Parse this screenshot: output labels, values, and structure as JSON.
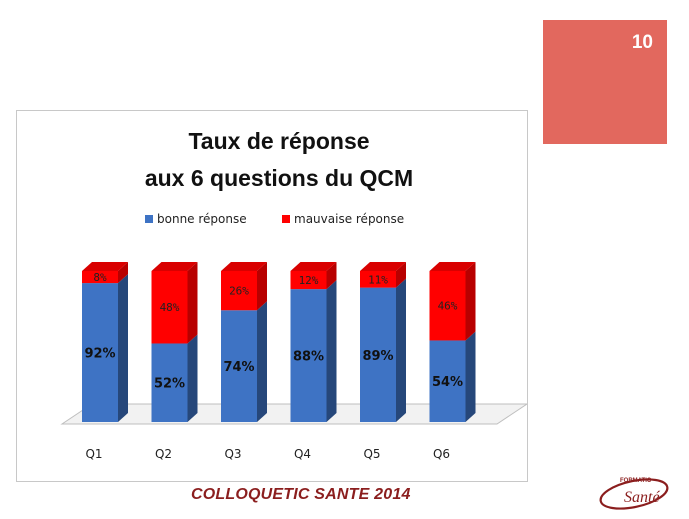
{
  "slide": {
    "page_number": "10",
    "footer": "COLLOQUETIC SANTE 2014",
    "badge_color": "#E2685E"
  },
  "logo": {
    "top_text": "FORMATIC",
    "main_text": "Santé",
    "color": "#8B1E1E"
  },
  "chart_data": {
    "type": "bar",
    "stacked": true,
    "title_lines": [
      "Taux de réponse",
      "aux 6 questions du QCM"
    ],
    "categories": [
      "Q1",
      "Q2",
      "Q3",
      "Q4",
      "Q5",
      "Q6"
    ],
    "series": [
      {
        "name": "bonne réponse",
        "color": "#3E73C4",
        "values": [
          92,
          52,
          74,
          88,
          89,
          54
        ],
        "labels": [
          "92%",
          "52%",
          "74%",
          "88%",
          "89%",
          "54%"
        ]
      },
      {
        "name": "mauvaise réponse",
        "color": "#FF0000",
        "values": [
          8,
          48,
          26,
          12,
          11,
          46
        ],
        "labels": [
          "8%",
          "48%",
          "26%",
          "12%",
          "11%",
          "46%"
        ]
      }
    ],
    "ylim": [
      0,
      100
    ],
    "legend_position": "top",
    "grid": false
  }
}
